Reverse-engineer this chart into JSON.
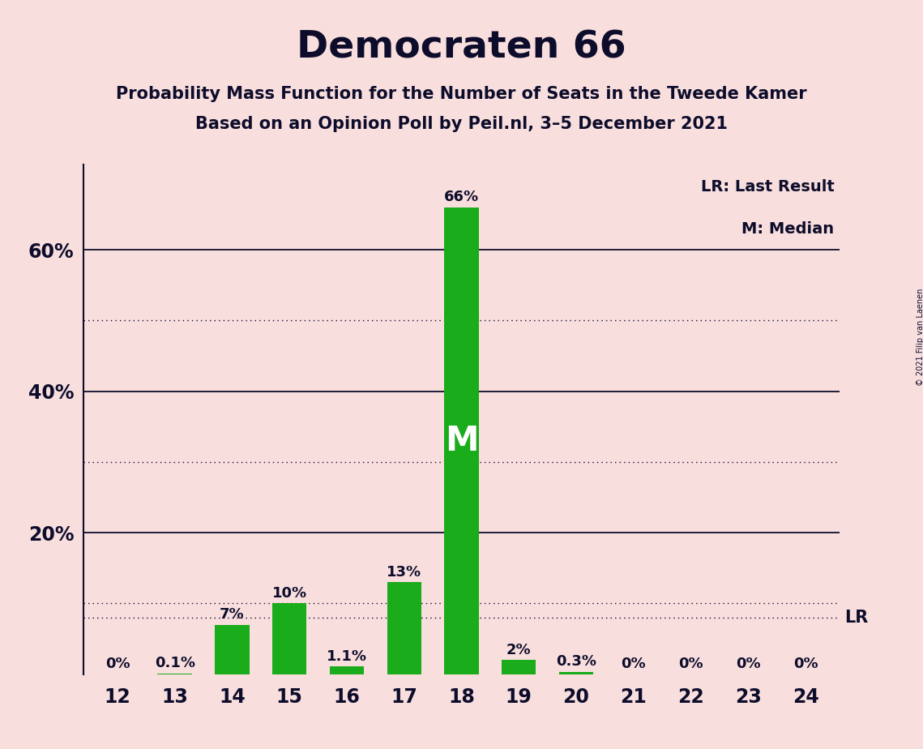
{
  "title": "Democraten 66",
  "subtitle1": "Probability Mass Function for the Number of Seats in the Tweede Kamer",
  "subtitle2": "Based on an Opinion Poll by Peil.nl, 3–5 December 2021",
  "copyright": "© 2021 Filip van Laenen",
  "categories": [
    12,
    13,
    14,
    15,
    16,
    17,
    18,
    19,
    20,
    21,
    22,
    23,
    24
  ],
  "values": [
    0.0,
    0.1,
    7.0,
    10.0,
    1.1,
    13.0,
    66.0,
    2.0,
    0.3,
    0.0,
    0.0,
    0.0,
    0.0
  ],
  "labels": [
    "0%",
    "0.1%",
    "7%",
    "10%",
    "1.1%",
    "13%",
    "66%",
    "2%",
    "0.3%",
    "0%",
    "0%",
    "0%",
    "0%"
  ],
  "bar_color": "#1aac1a",
  "background_color": "#f9dede",
  "text_color": "#0d0d2b",
  "median_seat": 18,
  "last_result_pct": 8.0,
  "legend_lr": "LR: Last Result",
  "legend_m": "M: Median",
  "solid_yticks": [
    20,
    40,
    60
  ],
  "dotted_yticks": [
    10,
    30,
    50
  ],
  "lr_pct": 8.0,
  "ylim_max": 72
}
